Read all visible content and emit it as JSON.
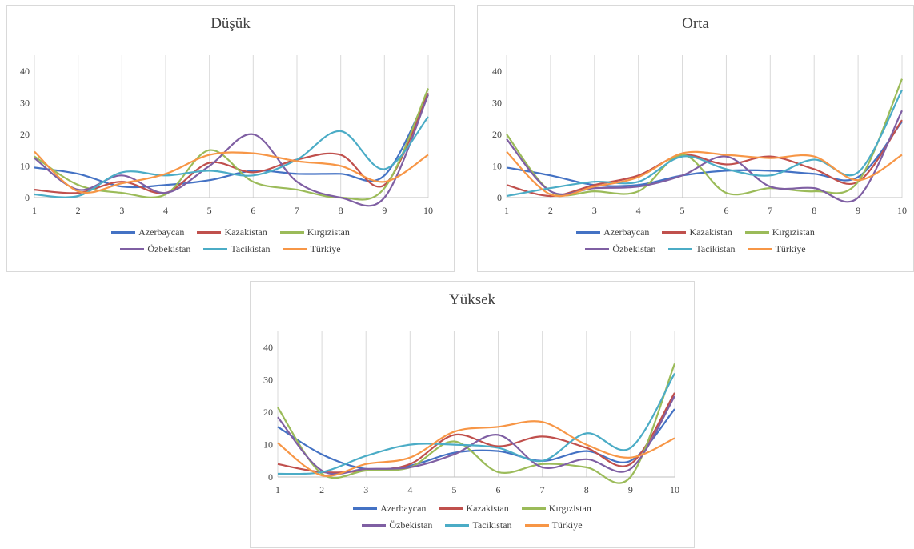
{
  "chart_data": [
    {
      "type": "line",
      "title": "Düşük",
      "categories": [
        "1",
        "2",
        "3",
        "4",
        "5",
        "6",
        "7",
        "8",
        "9",
        "10"
      ],
      "ylim": [
        0,
        45
      ],
      "yticks": [
        0,
        10,
        20,
        30,
        40
      ],
      "grid": "vertical",
      "legend": "bottom",
      "series": [
        {
          "name": "Azerbaycan",
          "color": "#4472C4",
          "values": [
            9.5,
            7.5,
            3.5,
            4,
            5.5,
            8.5,
            7.5,
            7.5,
            7,
            33
          ]
        },
        {
          "name": "Kazakistan",
          "color": "#C0504D",
          "values": [
            2.5,
            1.5,
            5,
            1.5,
            11,
            8,
            12,
            13.5,
            4,
            33
          ]
        },
        {
          "name": "Kırgızistan",
          "color": "#9BBB59",
          "values": [
            13,
            4,
            1.5,
            1,
            15,
            5,
            2.5,
            0,
            3,
            34.5
          ]
        },
        {
          "name": "Özbekistan",
          "color": "#7F5FA3",
          "values": [
            12.5,
            2.5,
            7,
            1.5,
            10,
            20,
            5,
            0,
            0,
            32.5
          ]
        },
        {
          "name": "Tacikistan",
          "color": "#4BACC6",
          "values": [
            1,
            0.5,
            8,
            7,
            8.5,
            7,
            12,
            21,
            9,
            25.5
          ]
        },
        {
          "name": "Türkiye",
          "color": "#F79646",
          "values": [
            14.5,
            2,
            4.5,
            7.5,
            13.5,
            14,
            11.5,
            10,
            5,
            13.5
          ]
        }
      ]
    },
    {
      "type": "line",
      "title": "Orta",
      "categories": [
        "1",
        "2",
        "3",
        "4",
        "5",
        "6",
        "7",
        "8",
        "9",
        "10"
      ],
      "ylim": [
        0,
        45
      ],
      "yticks": [
        0,
        10,
        20,
        30,
        40
      ],
      "grid": "vertical",
      "legend": "bottom",
      "series": [
        {
          "name": "Azerbaycan",
          "color": "#4472C4",
          "values": [
            9.5,
            7,
            4,
            4,
            7,
            8.5,
            8.5,
            7.5,
            6.5,
            24
          ]
        },
        {
          "name": "Kazakistan",
          "color": "#C0504D",
          "values": [
            4,
            0.5,
            4,
            7,
            13.5,
            10.5,
            13,
            9,
            5,
            24.5
          ]
        },
        {
          "name": "Kırgızistan",
          "color": "#9BBB59",
          "values": [
            20,
            2,
            2,
            2,
            13.5,
            1.5,
            3,
            2,
            5,
            37.5
          ]
        },
        {
          "name": "Özbekistan",
          "color": "#7F5FA3",
          "values": [
            18.5,
            2,
            3,
            3.5,
            7,
            13,
            3.5,
            3,
            0,
            27.5
          ]
        },
        {
          "name": "Tacikistan",
          "color": "#4BACC6",
          "values": [
            0.5,
            3,
            5,
            5,
            13,
            9,
            7,
            12,
            8,
            34
          ]
        },
        {
          "name": "Türkiye",
          "color": "#F79646",
          "values": [
            14.5,
            1,
            3.5,
            6.5,
            14,
            13.5,
            12.5,
            13,
            5.5,
            13.5
          ]
        }
      ]
    },
    {
      "type": "line",
      "title": "Yüksek",
      "categories": [
        "1",
        "2",
        "3",
        "4",
        "5",
        "6",
        "7",
        "8",
        "9",
        "10"
      ],
      "ylim": [
        0,
        45
      ],
      "yticks": [
        0,
        10,
        20,
        30,
        40
      ],
      "grid": "vertical",
      "legend": "bottom",
      "series": [
        {
          "name": "Azerbaycan",
          "color": "#4472C4",
          "values": [
            15.5,
            7,
            2.5,
            3.5,
            7.5,
            8,
            5,
            8,
            5,
            21
          ]
        },
        {
          "name": "Kazakistan",
          "color": "#C0504D",
          "values": [
            4,
            1.5,
            2,
            4,
            13,
            9.5,
            12.5,
            9,
            4,
            26
          ]
        },
        {
          "name": "Kırgızistan",
          "color": "#9BBB59",
          "values": [
            21.5,
            1,
            2,
            3,
            11,
            1.5,
            4,
            3,
            0,
            35
          ]
        },
        {
          "name": "Özbekistan",
          "color": "#7F5FA3",
          "values": [
            18.5,
            2,
            2.5,
            3,
            7,
            13,
            3,
            5.5,
            2.5,
            25
          ]
        },
        {
          "name": "Tacikistan",
          "color": "#4BACC6",
          "values": [
            1,
            1.5,
            6.5,
            10,
            10,
            9,
            5,
            13.5,
            9,
            32
          ]
        },
        {
          "name": "Türkiye",
          "color": "#F79646",
          "values": [
            10.5,
            0.5,
            4,
            6,
            14,
            15.5,
            17,
            10,
            6,
            12
          ]
        }
      ]
    }
  ]
}
